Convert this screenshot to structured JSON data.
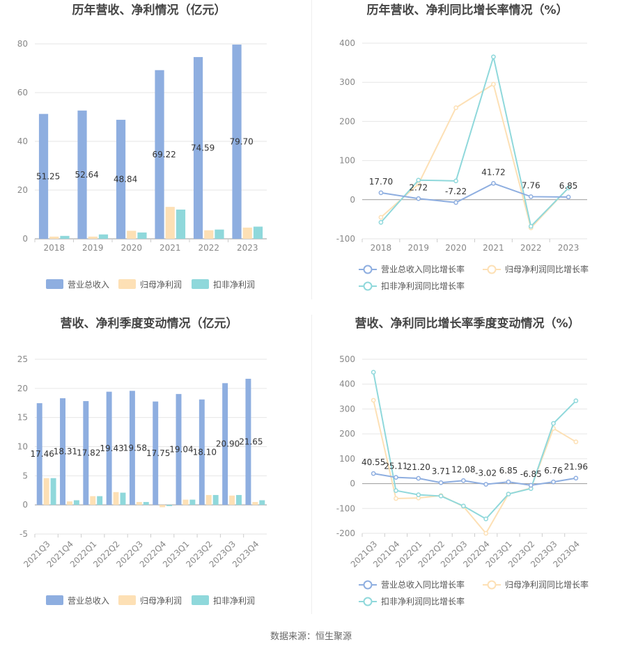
{
  "source": "数据来源：恒生聚源",
  "colors": {
    "revenue": "#8eaee0",
    "parent": "#fde0b5",
    "deducted": "#8fd8db",
    "grid": "#e6e6e6",
    "axis": "#cccccc"
  },
  "chart_data": [
    {
      "type": "bar",
      "title": "历年营收、净利情况（亿元）",
      "categories": [
        "2018",
        "2019",
        "2020",
        "2021",
        "2022",
        "2023"
      ],
      "ylim": [
        0,
        80
      ],
      "yticks": [
        0,
        20,
        40,
        60,
        80
      ],
      "series": [
        {
          "name": "营业总收入",
          "values": [
            51.25,
            52.64,
            48.84,
            69.22,
            74.59,
            79.7
          ]
        },
        {
          "name": "归母净利润",
          "values": [
            0.9,
            0.9,
            3.3,
            13.1,
            3.5,
            4.6
          ]
        },
        {
          "name": "扣非净利润",
          "values": [
            1.2,
            1.8,
            2.6,
            12.0,
            3.8,
            5.0
          ]
        }
      ],
      "labels": [
        "51.25",
        "52.64",
        "48.84",
        "69.22",
        "74.59",
        "79.70"
      ],
      "legend": "bottom"
    },
    {
      "type": "line",
      "title": "历年营收、净利同比增长率情况（%）",
      "categories": [
        "2018",
        "2019",
        "2020",
        "2021",
        "2022",
        "2023"
      ],
      "ylim": [
        -100,
        400
      ],
      "yticks": [
        -100,
        0,
        100,
        200,
        300,
        400
      ],
      "series": [
        {
          "name": "营业总收入同比增长率",
          "values": [
            17.7,
            2.72,
            -7.22,
            41.72,
            7.76,
            6.85
          ]
        },
        {
          "name": "归母净利润同比增长率",
          "values": [
            -45,
            40,
            235,
            295,
            -72,
            30
          ]
        },
        {
          "name": "扣非净利润同比增长率",
          "values": [
            -58,
            50,
            48,
            365,
            -68,
            30
          ]
        }
      ],
      "labels": [
        "17.70",
        "2.72",
        "-7.22",
        "41.72",
        "7.76",
        "6.85"
      ],
      "legend": "bottom"
    },
    {
      "type": "bar",
      "title": "营收、净利季度变动情况（亿元）",
      "categories": [
        "2021Q3",
        "2021Q4",
        "2022Q1",
        "2022Q2",
        "2022Q3",
        "2022Q4",
        "2023Q1",
        "2023Q2",
        "2023Q3",
        "2023Q4"
      ],
      "ylim": [
        -5,
        25
      ],
      "yticks": [
        -5,
        0,
        5,
        10,
        15,
        20,
        25
      ],
      "series": [
        {
          "name": "营业总收入",
          "values": [
            17.46,
            18.31,
            17.82,
            19.43,
            19.58,
            17.75,
            19.04,
            18.1,
            20.9,
            21.65
          ]
        },
        {
          "name": "归母净利润",
          "values": [
            4.6,
            0.6,
            1.5,
            2.2,
            0.5,
            -0.4,
            0.9,
            1.7,
            1.6,
            0.5
          ]
        },
        {
          "name": "扣非净利润",
          "values": [
            4.6,
            0.8,
            1.5,
            2.1,
            0.5,
            -0.2,
            0.9,
            1.7,
            1.7,
            0.8
          ]
        }
      ],
      "labels": [
        "17.46",
        "18.31",
        "17.82",
        "19.43",
        "19.58",
        "17.75",
        "19.04",
        "18.10",
        "20.90",
        "21.65"
      ],
      "legend": "bottom"
    },
    {
      "type": "line",
      "title": "营收、净利同比增长率季度变动情况（%）",
      "categories": [
        "2021Q3",
        "2021Q4",
        "2022Q1",
        "2022Q2",
        "2022Q3",
        "2022Q4",
        "2023Q1",
        "2023Q2",
        "2023Q3",
        "2023Q4"
      ],
      "ylim": [
        -200,
        500
      ],
      "yticks": [
        -200,
        -100,
        0,
        100,
        200,
        300,
        400,
        500
      ],
      "series": [
        {
          "name": "营业总收入同比增长率",
          "values": [
            40.55,
            25.11,
            21.2,
            3.71,
            12.08,
            -3.02,
            6.85,
            -6.85,
            6.76,
            21.96
          ]
        },
        {
          "name": "归母净利润同比增长率",
          "values": [
            335,
            -60,
            -58,
            -48,
            -92,
            -200,
            -42,
            -18,
            222,
            168
          ]
        },
        {
          "name": "扣非净利润同比增长率",
          "values": [
            448,
            -28,
            -45,
            -50,
            -90,
            -142,
            -42,
            -20,
            242,
            333
          ]
        }
      ],
      "labels": [
        "40.55",
        "25.11",
        "21.20",
        "3.71",
        "12.08",
        "-3.02",
        "6.85",
        "-6.85",
        "6.76",
        "21.96"
      ],
      "legend": "bottom"
    }
  ]
}
